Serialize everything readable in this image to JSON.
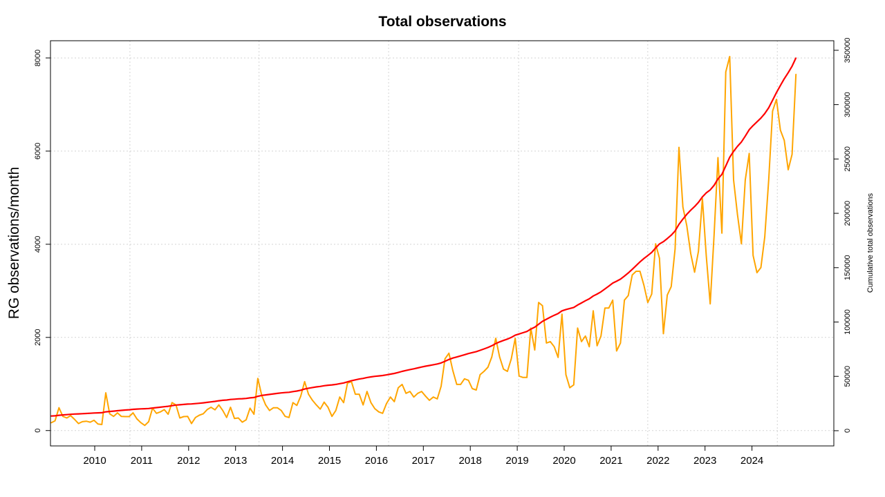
{
  "chart_data": {
    "type": "line",
    "title": "Total observations",
    "xlabel": "",
    "ylabel": "RG observations/month",
    "y2label": "Cumulative total observations",
    "x_start": "2009-01",
    "x_frequency": "monthly",
    "x_tick_labels": [
      "2010",
      "2011",
      "2012",
      "2013",
      "2014",
      "2015",
      "2016",
      "2017",
      "2018",
      "2019",
      "2020",
      "2021",
      "2022",
      "2023",
      "2024"
    ],
    "y_ticks": [
      0,
      2000,
      4000,
      6000,
      8000
    ],
    "y_tick_labels": [
      "0",
      "2000",
      "4000",
      "6000",
      "8000"
    ],
    "y2_ticks": [
      0,
      50000,
      100000,
      150000,
      200000,
      250000,
      300000,
      350000
    ],
    "y2_tick_labels": [
      "0",
      "50000",
      "100000",
      "150000",
      "200000",
      "250000",
      "300000",
      "350000"
    ],
    "ylim": [
      -330,
      8370
    ],
    "y2lim": [
      -14000,
      358800
    ],
    "grid": true,
    "legend": "none",
    "series": [
      {
        "axis": "left",
        "color": "#FFA500",
        "values": [
          167,
          210,
          490,
          305,
          270,
          320,
          240,
          150,
          190,
          200,
          180,
          220,
          140,
          130,
          810,
          360,
          305,
          380,
          305,
          300,
          300,
          380,
          250,
          170,
          110,
          190,
          480,
          370,
          400,
          450,
          350,
          600,
          550,
          270,
          300,
          305,
          150,
          280,
          330,
          360,
          450,
          500,
          445,
          550,
          430,
          280,
          500,
          260,
          270,
          180,
          230,
          480,
          350,
          1120,
          750,
          550,
          430,
          490,
          490,
          430,
          305,
          280,
          600,
          540,
          740,
          1050,
          780,
          650,
          550,
          460,
          610,
          500,
          305,
          430,
          720,
          600,
          1020,
          1050,
          780,
          780,
          550,
          840,
          600,
          470,
          400,
          370,
          580,
          720,
          620,
          920,
          990,
          800,
          840,
          720,
          800,
          840,
          740,
          650,
          720,
          680,
          950,
          1540,
          1660,
          1290,
          990,
          990,
          1110,
          1080,
          900,
          870,
          1200,
          1270,
          1360,
          1580,
          1980,
          1580,
          1320,
          1270,
          1540,
          1980,
          1170,
          1140,
          1140,
          2200,
          1730,
          2750,
          2680,
          1880,
          1910,
          1800,
          1570,
          2500,
          1200,
          920,
          980,
          2200,
          1910,
          2030,
          1800,
          2570,
          1820,
          2030,
          2630,
          2630,
          2800,
          1710,
          1880,
          2800,
          2900,
          3340,
          3420,
          3420,
          3120,
          2750,
          2930,
          4010,
          3700,
          2080,
          2910,
          3090,
          3900,
          6080,
          4800,
          4400,
          3800,
          3400,
          3850,
          4980,
          3750,
          2720,
          4200,
          5860,
          4240,
          7700,
          8030,
          5380,
          4640,
          4010,
          5380,
          5950,
          3760,
          3390,
          3500,
          4160,
          5380,
          6860,
          7110,
          6450,
          6230,
          5600,
          5930,
          7650
        ]
      },
      {
        "axis": "right",
        "color": "#FF0000",
        "kind": "cumulative",
        "first_value": 13500
      }
    ]
  }
}
